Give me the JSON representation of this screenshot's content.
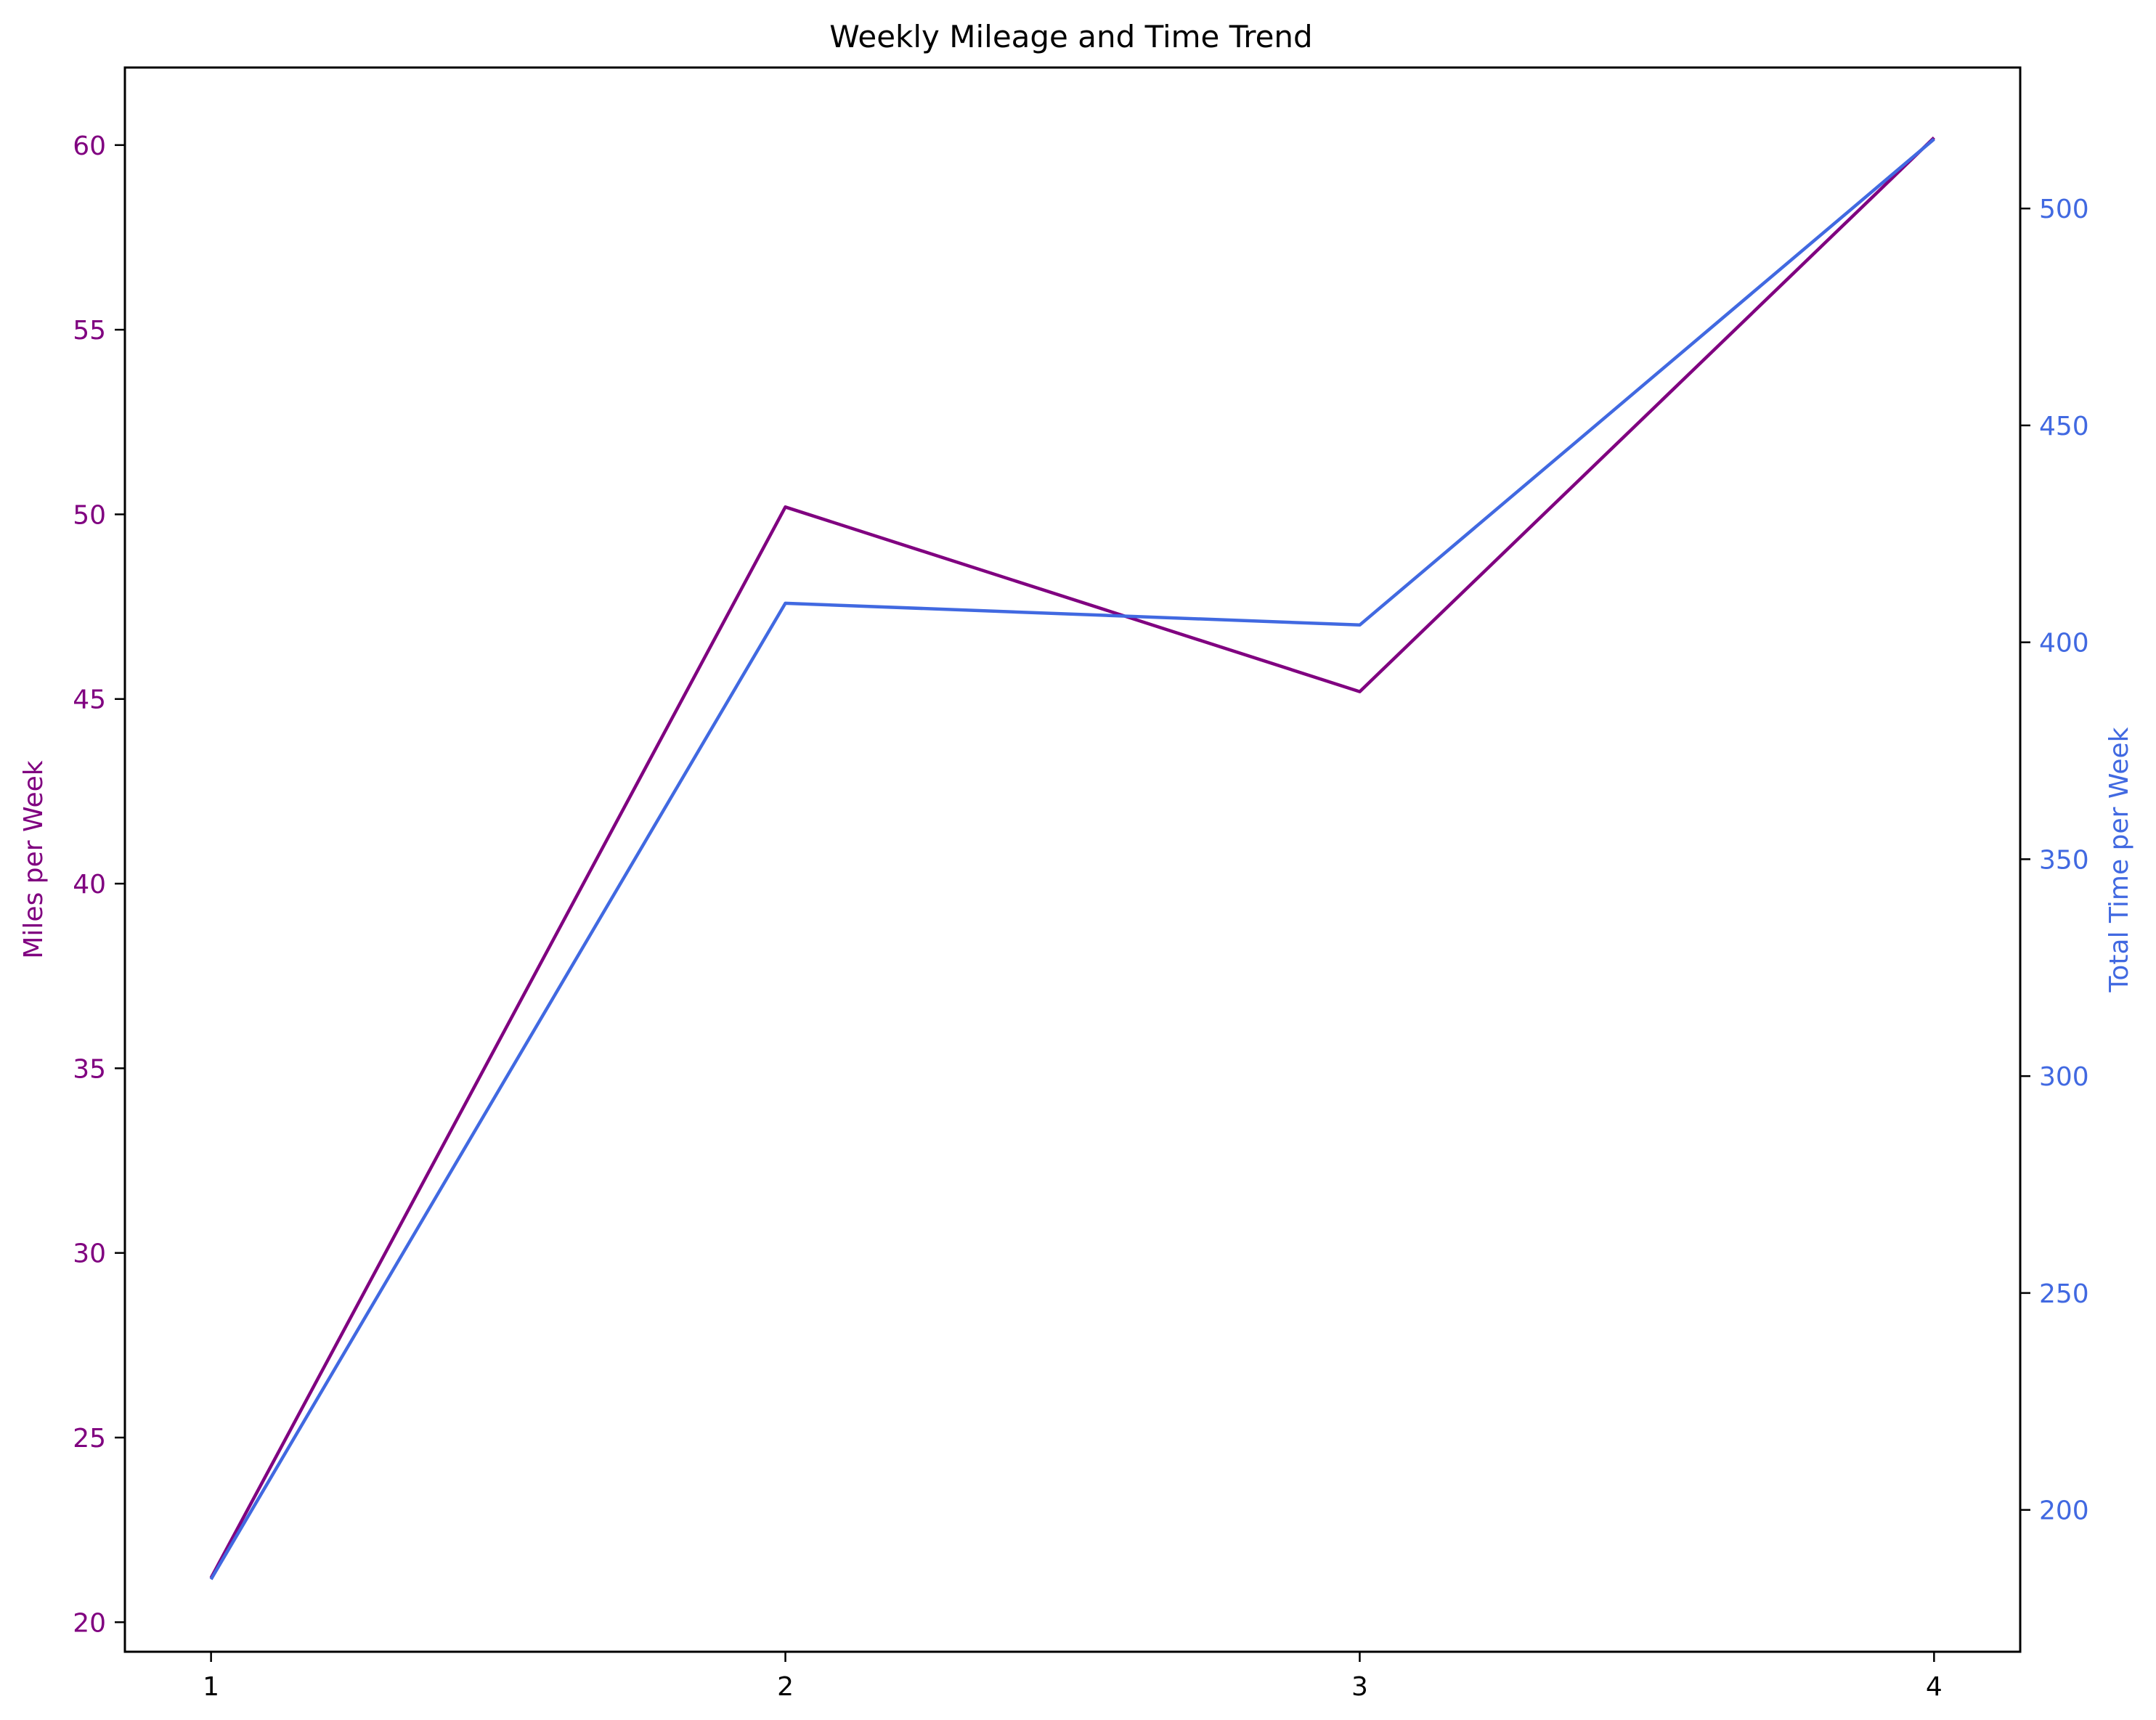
{
  "chart_data": {
    "type": "line",
    "title": "Weekly Mileage and Time Trend",
    "xlabel": "",
    "x": [
      1,
      2,
      3,
      4
    ],
    "xlim": [
      0.85,
      4.15
    ],
    "xticks": [
      "1",
      "2",
      "3",
      "4"
    ],
    "y_left": {
      "label": "Miles per Week",
      "color": "#800080",
      "lim": [
        19.2,
        62.1
      ],
      "ticks": [
        20,
        25,
        30,
        35,
        40,
        45,
        50,
        55,
        60
      ]
    },
    "y_right": {
      "label": "Total Time per Week",
      "color": "#4169E1",
      "lim": [
        167.3,
        532.5
      ],
      "ticks": [
        200,
        250,
        300,
        350,
        400,
        450,
        500
      ]
    },
    "series": [
      {
        "axis": "left",
        "color": "#800080",
        "values": [
          21.2,
          50.2,
          45.2,
          60.2
        ]
      },
      {
        "axis": "right",
        "color": "#4169E1",
        "values": [
          184,
          409,
          404,
          516
        ]
      }
    ],
    "grid": false,
    "legend": "none"
  }
}
